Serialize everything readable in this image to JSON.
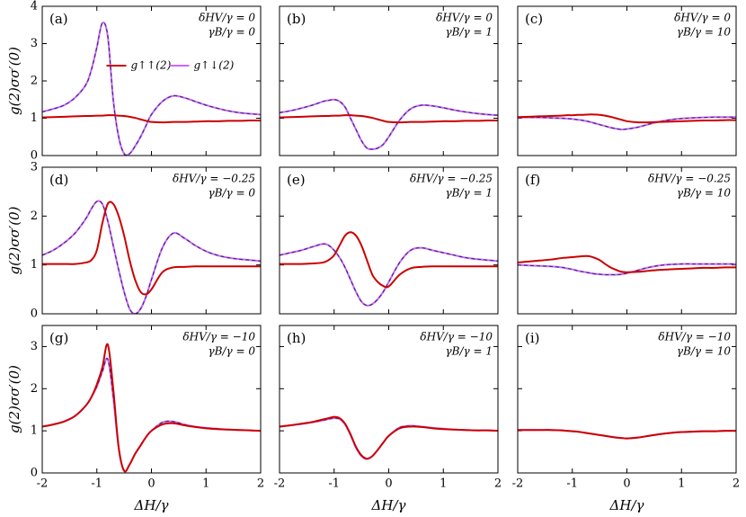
{
  "chart_data": [
    {
      "type": "line",
      "label": "(a)",
      "annotations": [
        "δHV/γ = 0",
        "γB/γ = 0"
      ],
      "ylabel": "g(2)σσ′(0)",
      "legend": "upper center",
      "x": [
        -2,
        -1.8,
        -1.6,
        -1.4,
        -1.2,
        -1.1,
        -1,
        -0.9,
        -0.8,
        -0.7,
        -0.6,
        -0.5,
        -0.4,
        -0.3,
        -0.2,
        -0.1,
        0,
        0.2,
        0.4,
        0.6,
        0.8,
        1,
        1.2,
        1.4,
        1.6,
        1.8,
        2
      ],
      "series": [
        {
          "name": "g↑↓(2)",
          "color": "#cc66ff",
          "dash_color": "#2b2b5e",
          "values": [
            1.17,
            1.25,
            1.35,
            1.55,
            1.9,
            2.3,
            2.9,
            3.55,
            3.2,
            1.5,
            0.5,
            0.05,
            0.05,
            0.25,
            0.5,
            0.8,
            1.1,
            1.45,
            1.6,
            1.55,
            1.45,
            1.35,
            1.27,
            1.2,
            1.15,
            1.12,
            1.1
          ]
        },
        {
          "name": "g↑↑(2)",
          "color": "#cc0000",
          "values": [
            1.02,
            1.03,
            1.04,
            1.05,
            1.06,
            1.06,
            1.07,
            1.07,
            1.08,
            1.08,
            1.07,
            1.06,
            1.04,
            1.01,
            0.97,
            0.93,
            0.9,
            0.89,
            0.9,
            0.9,
            0.91,
            0.92,
            0.92,
            0.93,
            0.93,
            0.94,
            0.94
          ]
        }
      ],
      "xlim": [
        -2,
        2
      ],
      "xticks": [
        -2,
        -1,
        0,
        1,
        2
      ],
      "ylim": [
        0,
        4
      ],
      "yticks": [
        0,
        1,
        2,
        3,
        4
      ]
    },
    {
      "type": "line",
      "label": "(b)",
      "annotations": [
        "δHV/γ = 0",
        "γB/γ = 1"
      ],
      "x": [
        -2,
        -1.8,
        -1.6,
        -1.4,
        -1.2,
        -1.1,
        -1,
        -0.9,
        -0.8,
        -0.7,
        -0.6,
        -0.5,
        -0.4,
        -0.3,
        -0.2,
        -0.1,
        0,
        0.2,
        0.4,
        0.6,
        0.8,
        1,
        1.2,
        1.4,
        1.6,
        1.8,
        2
      ],
      "series": [
        {
          "color": "#cc66ff",
          "dash_color": "#2b2b5e",
          "values": [
            1.15,
            1.2,
            1.27,
            1.35,
            1.45,
            1.48,
            1.5,
            1.45,
            1.3,
            1.0,
            0.7,
            0.4,
            0.2,
            0.17,
            0.2,
            0.3,
            0.5,
            0.95,
            1.25,
            1.35,
            1.33,
            1.28,
            1.22,
            1.17,
            1.13,
            1.1,
            1.08
          ]
        },
        {
          "color": "#cc0000",
          "values": [
            1.02,
            1.03,
            1.04,
            1.05,
            1.06,
            1.06,
            1.07,
            1.07,
            1.08,
            1.08,
            1.07,
            1.06,
            1.04,
            1.01,
            0.97,
            0.93,
            0.9,
            0.89,
            0.9,
            0.9,
            0.91,
            0.92,
            0.92,
            0.93,
            0.93,
            0.94,
            0.94
          ]
        }
      ],
      "xlim": [
        -2,
        2
      ],
      "xticks": [
        -2,
        -1,
        0,
        1,
        2
      ],
      "ylim": [
        0,
        4
      ],
      "yticks": [
        0,
        1,
        2,
        3,
        4
      ]
    },
    {
      "type": "line",
      "label": "(c)",
      "annotations": [
        "δHV/γ = 0",
        "γB/γ = 10"
      ],
      "x": [
        -2,
        -1.8,
        -1.6,
        -1.4,
        -1.2,
        -1.1,
        -1,
        -0.9,
        -0.8,
        -0.7,
        -0.6,
        -0.5,
        -0.4,
        -0.3,
        -0.2,
        -0.1,
        0,
        0.2,
        0.4,
        0.6,
        0.8,
        1,
        1.2,
        1.4,
        1.6,
        1.8,
        2
      ],
      "series": [
        {
          "color": "#cc66ff",
          "dash_color": "#2b2b5e",
          "values": [
            1.02,
            1.02,
            1.02,
            1.01,
            1.0,
            0.99,
            0.98,
            0.96,
            0.94,
            0.91,
            0.87,
            0.83,
            0.79,
            0.75,
            0.72,
            0.7,
            0.71,
            0.76,
            0.84,
            0.91,
            0.96,
            0.99,
            1.01,
            1.02,
            1.03,
            1.03,
            1.03
          ]
        },
        {
          "color": "#cc0000",
          "values": [
            1.03,
            1.04,
            1.05,
            1.06,
            1.07,
            1.08,
            1.08,
            1.09,
            1.09,
            1.1,
            1.1,
            1.09,
            1.07,
            1.04,
            1.0,
            0.96,
            0.92,
            0.89,
            0.89,
            0.9,
            0.91,
            0.92,
            0.93,
            0.94,
            0.94,
            0.95,
            0.95
          ]
        }
      ],
      "xlim": [
        -2,
        2
      ],
      "xticks": [
        -2,
        -1,
        0,
        1,
        2
      ],
      "ylim": [
        0,
        4
      ],
      "yticks": [
        0,
        1,
        2,
        3,
        4
      ]
    },
    {
      "type": "line",
      "label": "(d)",
      "annotations": [
        "δHV/γ = −0.25",
        "γB/γ = 0"
      ],
      "ylabel": "g(2)σσ′(0)",
      "x": [
        -2,
        -1.8,
        -1.6,
        -1.4,
        -1.2,
        -1.1,
        -1,
        -0.9,
        -0.8,
        -0.7,
        -0.6,
        -0.5,
        -0.4,
        -0.3,
        -0.2,
        -0.1,
        0,
        0.2,
        0.4,
        0.6,
        0.8,
        1,
        1.2,
        1.4,
        1.6,
        1.8,
        2
      ],
      "series": [
        {
          "color": "#cc66ff",
          "dash_color": "#2b2b5e",
          "values": [
            1.2,
            1.3,
            1.45,
            1.65,
            1.95,
            2.15,
            2.3,
            2.25,
            1.9,
            1.4,
            0.9,
            0.45,
            0.1,
            0.0,
            0.1,
            0.35,
            0.7,
            1.35,
            1.65,
            1.55,
            1.4,
            1.28,
            1.2,
            1.15,
            1.12,
            1.1,
            1.08
          ]
        },
        {
          "color": "#cc0000",
          "values": [
            1.02,
            1.02,
            1.02,
            1.02,
            1.05,
            1.1,
            1.3,
            1.85,
            2.25,
            2.25,
            2.0,
            1.6,
            1.1,
            0.7,
            0.45,
            0.4,
            0.5,
            0.85,
            0.95,
            0.96,
            0.97,
            0.97,
            0.97,
            0.97,
            0.97,
            0.97,
            0.97
          ]
        }
      ],
      "xlim": [
        -2,
        2
      ],
      "xticks": [
        -2,
        -1,
        0,
        1,
        2
      ],
      "ylim": [
        0,
        3
      ],
      "yticks": [
        0,
        1,
        2,
        3
      ]
    },
    {
      "type": "line",
      "label": "(e)",
      "annotations": [
        "δHV/γ = −0.25",
        "γB/γ = 1"
      ],
      "x": [
        -2,
        -1.8,
        -1.6,
        -1.4,
        -1.2,
        -1.1,
        -1,
        -0.9,
        -0.8,
        -0.7,
        -0.6,
        -0.5,
        -0.4,
        -0.3,
        -0.2,
        -0.1,
        0,
        0.2,
        0.4,
        0.6,
        0.8,
        1,
        1.2,
        1.4,
        1.6,
        1.8,
        2
      ],
      "series": [
        {
          "color": "#cc66ff",
          "dash_color": "#2b2b5e",
          "values": [
            1.2,
            1.25,
            1.3,
            1.37,
            1.43,
            1.4,
            1.3,
            1.15,
            0.95,
            0.7,
            0.45,
            0.25,
            0.17,
            0.2,
            0.3,
            0.45,
            0.65,
            1.05,
            1.3,
            1.35,
            1.3,
            1.25,
            1.2,
            1.15,
            1.12,
            1.1,
            1.08
          ]
        },
        {
          "color": "#cc0000",
          "values": [
            1.02,
            1.02,
            1.02,
            1.03,
            1.05,
            1.1,
            1.2,
            1.4,
            1.6,
            1.67,
            1.6,
            1.4,
            1.1,
            0.8,
            0.65,
            0.57,
            0.56,
            0.8,
            0.93,
            0.96,
            0.97,
            0.97,
            0.97,
            0.97,
            0.97,
            0.97,
            0.97
          ]
        }
      ],
      "xlim": [
        -2,
        2
      ],
      "xticks": [
        -2,
        -1,
        0,
        1,
        2
      ],
      "ylim": [
        0,
        3
      ],
      "yticks": [
        0,
        1,
        2,
        3
      ]
    },
    {
      "type": "line",
      "label": "(f)",
      "annotations": [
        "δHV/γ = −0.25",
        "γB/γ = 10"
      ],
      "x": [
        -2,
        -1.8,
        -1.6,
        -1.4,
        -1.2,
        -1.1,
        -1,
        -0.9,
        -0.8,
        -0.7,
        -0.6,
        -0.5,
        -0.4,
        -0.3,
        -0.2,
        -0.1,
        0,
        0.2,
        0.4,
        0.6,
        0.8,
        1,
        1.2,
        1.4,
        1.6,
        1.8,
        2
      ],
      "series": [
        {
          "color": "#cc66ff",
          "dash_color": "#2b2b5e",
          "values": [
            1.0,
            0.99,
            0.98,
            0.97,
            0.95,
            0.93,
            0.91,
            0.88,
            0.86,
            0.84,
            0.82,
            0.81,
            0.8,
            0.8,
            0.8,
            0.81,
            0.83,
            0.89,
            0.95,
            0.99,
            1.01,
            1.02,
            1.02,
            1.02,
            1.02,
            1.02,
            1.02
          ]
        },
        {
          "color": "#cc0000",
          "values": [
            1.05,
            1.07,
            1.09,
            1.11,
            1.14,
            1.15,
            1.16,
            1.17,
            1.18,
            1.18,
            1.15,
            1.1,
            1.02,
            0.95,
            0.9,
            0.86,
            0.85,
            0.86,
            0.88,
            0.9,
            0.91,
            0.92,
            0.93,
            0.94,
            0.94,
            0.95,
            0.95
          ]
        }
      ],
      "xlim": [
        -2,
        2
      ],
      "xticks": [
        -2,
        -1,
        0,
        1,
        2
      ],
      "ylim": [
        0,
        3
      ],
      "yticks": [
        0,
        1,
        2,
        3
      ]
    },
    {
      "type": "line",
      "label": "(g)",
      "annotations": [
        "δHV/γ = −10",
        "γB/γ = 0"
      ],
      "ylabel": "g(2)σσ′(0)",
      "xlabel": "ΔH/γ",
      "x": [
        -2,
        -1.8,
        -1.6,
        -1.4,
        -1.2,
        -1.1,
        -1,
        -0.9,
        -0.8,
        -0.7,
        -0.6,
        -0.5,
        -0.4,
        -0.3,
        -0.2,
        -0.1,
        0,
        0.2,
        0.4,
        0.6,
        0.8,
        1,
        1.2,
        1.4,
        1.6,
        1.8,
        2
      ],
      "series": [
        {
          "color": "#cc66ff",
          "dash_color": "#2b2b5e",
          "values": [
            1.1,
            1.15,
            1.22,
            1.35,
            1.6,
            1.8,
            2.05,
            2.4,
            2.7,
            1.8,
            0.6,
            0.05,
            0.2,
            0.45,
            0.65,
            0.85,
            1.0,
            1.2,
            1.22,
            1.15,
            1.1,
            1.07,
            1.05,
            1.03,
            1.02,
            1.01,
            1.0
          ]
        },
        {
          "color": "#cc0000",
          "values": [
            1.1,
            1.15,
            1.22,
            1.35,
            1.6,
            1.8,
            2.1,
            2.5,
            3.05,
            2.0,
            0.6,
            0.05,
            0.2,
            0.45,
            0.65,
            0.85,
            1.0,
            1.15,
            1.18,
            1.13,
            1.09,
            1.06,
            1.04,
            1.03,
            1.02,
            1.01,
            1.0
          ]
        }
      ],
      "xlim": [
        -2,
        2
      ],
      "xticks": [
        -2,
        -1,
        0,
        1,
        2
      ],
      "ylim": [
        0,
        3.5
      ],
      "yticks": [
        0,
        1,
        2,
        3
      ]
    },
    {
      "type": "line",
      "label": "(h)",
      "annotations": [
        "δHV/γ = −10",
        "γB/γ = 1"
      ],
      "xlabel": "ΔH/γ",
      "x": [
        -2,
        -1.8,
        -1.6,
        -1.4,
        -1.2,
        -1.1,
        -1,
        -0.9,
        -0.8,
        -0.7,
        -0.6,
        -0.5,
        -0.4,
        -0.3,
        -0.2,
        -0.1,
        0,
        0.2,
        0.4,
        0.6,
        0.8,
        1,
        1.2,
        1.4,
        1.6,
        1.8,
        2
      ],
      "series": [
        {
          "color": "#cc66ff",
          "dash_color": "#2b2b5e",
          "values": [
            1.1,
            1.13,
            1.16,
            1.2,
            1.25,
            1.28,
            1.3,
            1.28,
            1.15,
            0.9,
            0.6,
            0.4,
            0.33,
            0.4,
            0.55,
            0.72,
            0.88,
            1.08,
            1.12,
            1.1,
            1.07,
            1.05,
            1.03,
            1.02,
            1.01,
            1.01,
            1.0
          ]
        },
        {
          "color": "#cc0000",
          "values": [
            1.1,
            1.13,
            1.17,
            1.21,
            1.27,
            1.3,
            1.33,
            1.3,
            1.17,
            0.92,
            0.62,
            0.42,
            0.34,
            0.4,
            0.55,
            0.72,
            0.88,
            1.06,
            1.1,
            1.09,
            1.06,
            1.04,
            1.03,
            1.02,
            1.01,
            1.01,
            1.0
          ]
        }
      ],
      "xlim": [
        -2,
        2
      ],
      "xticks": [
        -2,
        -1,
        0,
        1,
        2
      ],
      "ylim": [
        0,
        3.5
      ],
      "yticks": [
        0,
        1,
        2,
        3
      ]
    },
    {
      "type": "line",
      "label": "(i)",
      "annotations": [
        "δHV/γ = −10",
        "γB/γ = 10"
      ],
      "xlabel": "ΔH/γ",
      "x": [
        -2,
        -1.8,
        -1.6,
        -1.4,
        -1.2,
        -1.1,
        -1,
        -0.9,
        -0.8,
        -0.7,
        -0.6,
        -0.5,
        -0.4,
        -0.3,
        -0.2,
        -0.1,
        0,
        0.2,
        0.4,
        0.6,
        0.8,
        1,
        1.2,
        1.4,
        1.6,
        1.8,
        2
      ],
      "series": [
        {
          "color": "#cc66ff",
          "dash_color": "#2b2b5e",
          "values": [
            1.02,
            1.02,
            1.02,
            1.02,
            1.01,
            1.0,
            0.99,
            0.98,
            0.96,
            0.94,
            0.92,
            0.9,
            0.88,
            0.86,
            0.84,
            0.83,
            0.82,
            0.84,
            0.88,
            0.92,
            0.95,
            0.97,
            0.98,
            0.99,
            0.99,
            1.0,
            1.0
          ]
        },
        {
          "color": "#cc0000",
          "values": [
            1.02,
            1.02,
            1.02,
            1.02,
            1.01,
            1.0,
            0.99,
            0.98,
            0.96,
            0.94,
            0.92,
            0.9,
            0.88,
            0.86,
            0.84,
            0.83,
            0.82,
            0.84,
            0.88,
            0.92,
            0.95,
            0.97,
            0.98,
            0.99,
            0.99,
            1.0,
            1.0
          ]
        }
      ],
      "xlim": [
        -2,
        2
      ],
      "xticks": [
        -2,
        -1,
        0,
        1,
        2
      ],
      "ylim": [
        0,
        3.5
      ],
      "yticks": [
        0,
        1,
        2,
        3
      ]
    }
  ]
}
